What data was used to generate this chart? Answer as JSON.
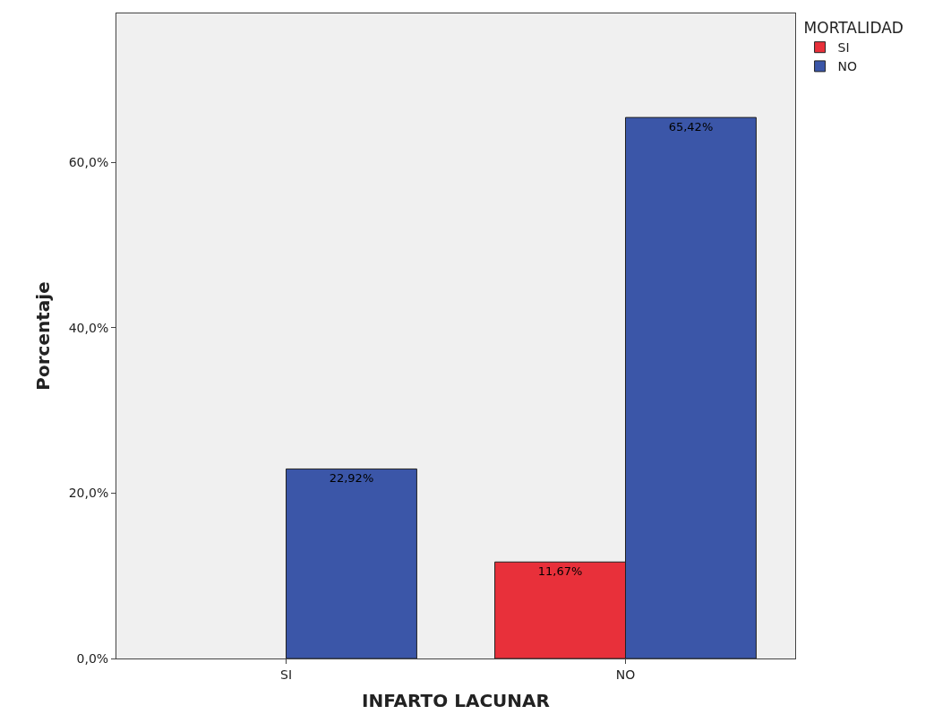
{
  "chart_data": {
    "type": "bar",
    "xlabel": "INFARTO LACUNAR",
    "ylabel": "Porcentaje",
    "legend_title": "MORTALIDAD",
    "categories": [
      "SI",
      "NO"
    ],
    "series": [
      {
        "name": "SI",
        "color": "#e8303a",
        "values": [
          null,
          11.67
        ],
        "value_labels": [
          null,
          "11,67%"
        ]
      },
      {
        "name": "NO",
        "color": "#3b56a8",
        "values": [
          22.92,
          65.42
        ],
        "value_labels": [
          "22,92%",
          "65,42%"
        ]
      }
    ],
    "ylim": [
      0,
      78
    ],
    "yticks": [
      {
        "value": 0,
        "label": "0,0%"
      },
      {
        "value": 20,
        "label": "20,0%"
      },
      {
        "value": 40,
        "label": "40,0%"
      },
      {
        "value": 60,
        "label": "60,0%"
      }
    ],
    "grid": false,
    "legend": "top right"
  }
}
